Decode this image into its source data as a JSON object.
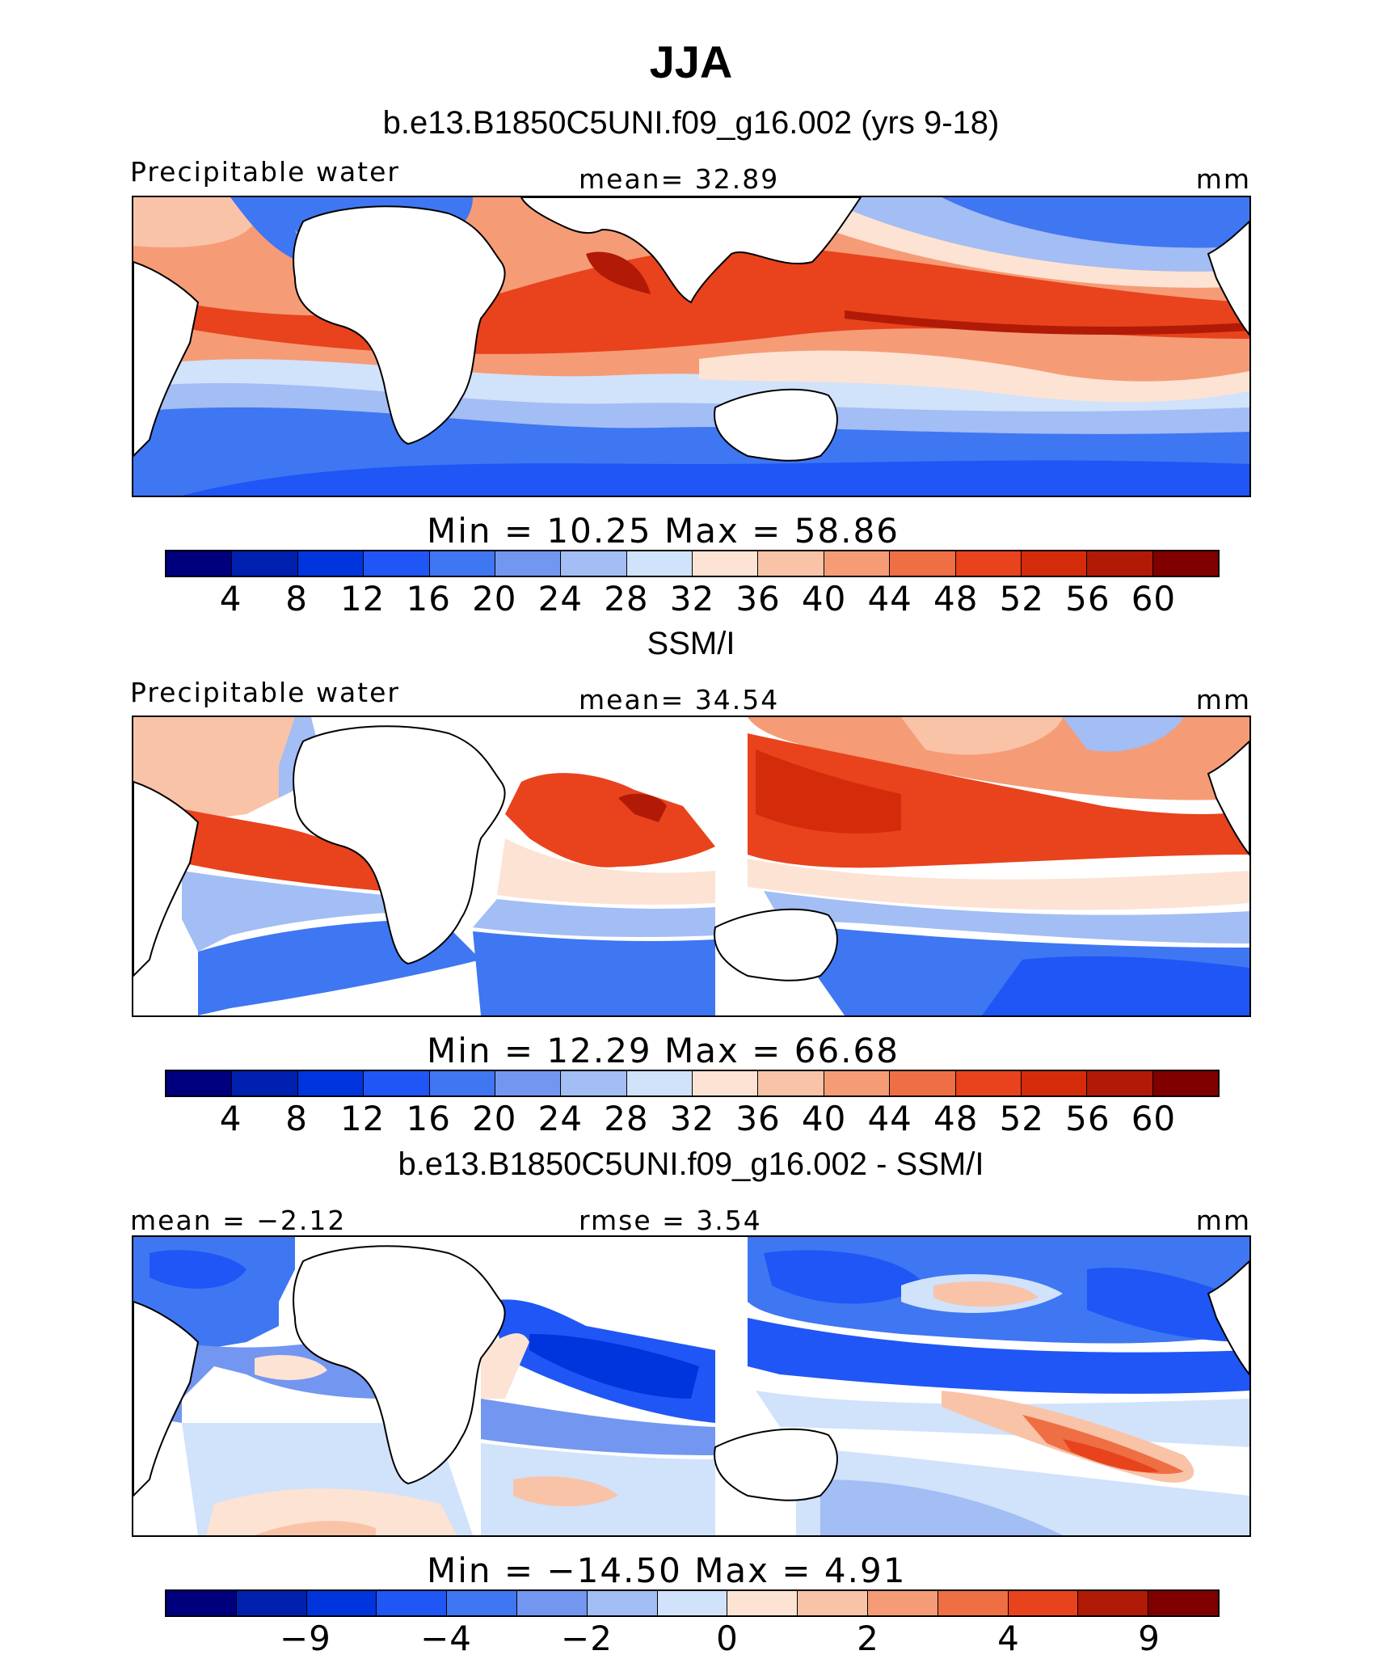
{
  "figure": {
    "season": "JJA"
  },
  "colors": {
    "precip_scale": [
      "#00007f",
      "#0020b0",
      "#0034dc",
      "#1f56f5",
      "#3f76f2",
      "#7396f0",
      "#a3bdf5",
      "#d1e2fb",
      "#fde3d3",
      "#f9c3a8",
      "#f59c77",
      "#ef6f45",
      "#e8431d",
      "#d42c0a",
      "#b11a07",
      "#800000"
    ],
    "diff_scale": [
      "#00007f",
      "#0020b0",
      "#0034dc",
      "#1f56f5",
      "#3f76f2",
      "#7396f0",
      "#a3bdf5",
      "#d1e2fb",
      "#fde3d3",
      "#f9c3a8",
      "#f59c77",
      "#ef6f45",
      "#e8431d",
      "#b11a07",
      "#800000"
    ]
  },
  "panels": [
    {
      "title": "b.e13.B1850C5UNI.f09_g16.002 (yrs 9-18)",
      "left_label": "Precipitable water",
      "center_label": "mean=   32.89",
      "units": "mm",
      "minmax": "Min =   10.25  Max =   58.86",
      "colorbar_ticks": [
        "4",
        "8",
        "12",
        "16",
        "20",
        "24",
        "28",
        "32",
        "36",
        "40",
        "44",
        "48",
        "52",
        "56",
        "60"
      ]
    },
    {
      "title": "SSM/I",
      "left_label": "Precipitable water",
      "center_label": "mean=   34.54",
      "units": "mm",
      "minmax": "Min =   12.29  Max =   66.68",
      "colorbar_ticks": [
        "4",
        "8",
        "12",
        "16",
        "20",
        "24",
        "28",
        "32",
        "36",
        "40",
        "44",
        "48",
        "52",
        "56",
        "60"
      ]
    },
    {
      "title": "b.e13.B1850C5UNI.f09_g16.002 - SSM/I",
      "left_label": "mean =  −2.12",
      "center_label": "rmse =    3.54",
      "units": "mm",
      "minmax": "Min =  −14.50  Max =    4.91",
      "colorbar_ticks": [
        "−9",
        "−4",
        "−2",
        "0",
        "2",
        "4",
        "9"
      ]
    }
  ]
}
